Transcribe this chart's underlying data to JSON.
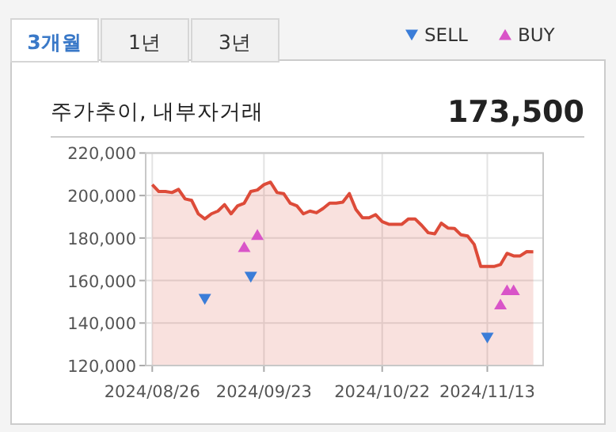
{
  "chart_data": {
    "type": "area",
    "title": "주가추이, 내부자거래",
    "annotations": [
      "3개월",
      "1년",
      "3년",
      "173,500"
    ],
    "categories": [
      "2024/08/26",
      null,
      null,
      null,
      null,
      null,
      null,
      null,
      null,
      null,
      null,
      null,
      null,
      null,
      null,
      null,
      null,
      "2024/09/23",
      null,
      null,
      null,
      null,
      null,
      null,
      null,
      null,
      null,
      null,
      null,
      null,
      null,
      null,
      null,
      null,
      null,
      "2024/10/22",
      null,
      null,
      null,
      null,
      null,
      null,
      null,
      null,
      null,
      null,
      null,
      null,
      null,
      null,
      null,
      "2024/11/13",
      null,
      null,
      null,
      null,
      null,
      null,
      null
    ],
    "series": [
      {
        "color": "#dd4b39",
        "values": [
          205100,
          201900,
          201900,
          201400,
          202900,
          198400,
          197700,
          191400,
          189000,
          191400,
          192700,
          195700,
          191400,
          195200,
          196400,
          201900,
          202600,
          205100,
          206300,
          201400,
          200900,
          196400,
          195200,
          191400,
          192700,
          191900,
          193900,
          196400,
          196400,
          196900,
          200900,
          193400,
          189500,
          189500,
          191000,
          187700,
          186500,
          186500,
          186500,
          189000,
          189000,
          186000,
          182500,
          182000,
          187000,
          184700,
          184500,
          181500,
          181000,
          177000,
          166600,
          166600,
          166600,
          167500,
          172800,
          171600,
          171600,
          173600,
          173500
        ]
      },
      {
        "type": "scatter",
        "name": "SELL",
        "color": "#3b7dd8",
        "marker": "triangle",
        "values": [
          null,
          null,
          null,
          null,
          null,
          null,
          null,
          null,
          151300,
          null,
          null,
          null,
          null,
          null,
          null,
          161700,
          null,
          null,
          null,
          null,
          null,
          null,
          null,
          null,
          null,
          null,
          null,
          null,
          null,
          null,
          null,
          null,
          null,
          null,
          null,
          null,
          null,
          null,
          null,
          null,
          null,
          null,
          null,
          null,
          null,
          null,
          null,
          null,
          null,
          null,
          null,
          133100,
          null,
          null,
          null,
          null,
          null,
          null,
          null
        ]
      },
      {
        "type": "scatter",
        "name": "BUY",
        "color": "#d954c8",
        "marker": "triangle",
        "values": [
          null,
          null,
          null,
          null,
          null,
          null,
          null,
          null,
          null,
          null,
          null,
          null,
          null,
          null,
          175800,
          null,
          181500,
          null,
          null,
          null,
          null,
          null,
          null,
          null,
          null,
          null,
          null,
          null,
          null,
          null,
          null,
          null,
          null,
          null,
          null,
          null,
          null,
          null,
          null,
          null,
          null,
          null,
          null,
          null,
          null,
          null,
          null,
          null,
          null,
          null,
          null,
          null,
          null,
          148800,
          155500,
          155500,
          null,
          null,
          null
        ]
      }
    ],
    "ylim": [
      120000,
      220000
    ],
    "yticks": [
      {
        "value": 120000,
        "label": "120,000"
      },
      {
        "value": 140000,
        "label": "140,000"
      },
      {
        "value": 160000,
        "label": "160,000"
      },
      {
        "value": 180000,
        "label": "180,000"
      },
      {
        "value": 200000,
        "label": "200,000"
      },
      {
        "value": 220000,
        "label": "220,000"
      }
    ],
    "grid": true,
    "legend": "top right"
  }
}
